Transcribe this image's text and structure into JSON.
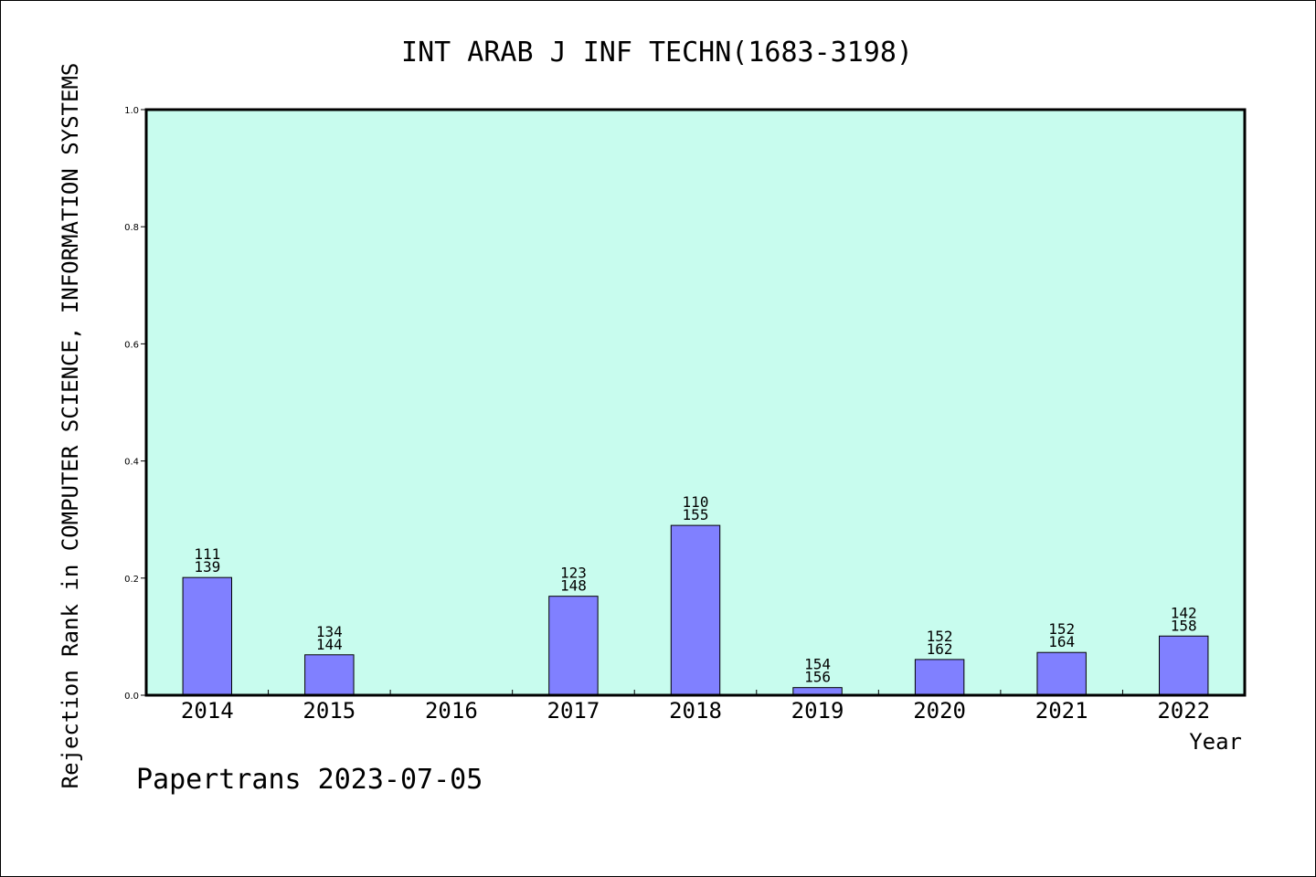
{
  "chart_data": {
    "type": "bar",
    "title": "INT ARAB J INF TECHN(1683-3198)",
    "ylabel": "Rejection Rank in COMPUTER SCIENCE, INFORMATION SYSTEMS",
    "xlabel": "Year",
    "categories": [
      "2014",
      "2015",
      "2016",
      "2017",
      "2018",
      "2019",
      "2020",
      "2021",
      "2022"
    ],
    "values": [
      0.201,
      0.069,
      null,
      0.169,
      0.29,
      0.013,
      0.061,
      0.073,
      0.101
    ],
    "labels": [
      [
        "111",
        "139"
      ],
      [
        "134",
        "144"
      ],
      null,
      [
        "123",
        "148"
      ],
      [
        "110",
        "155"
      ],
      [
        "154",
        "156"
      ],
      [
        "152",
        "162"
      ],
      [
        "152",
        "164"
      ],
      [
        "142",
        "158"
      ]
    ],
    "ylim": [
      0,
      1.0
    ],
    "yticks": [
      "0.0",
      "0.2",
      "0.4",
      "0.6",
      "0.8",
      "1.0"
    ],
    "grid": false,
    "colors": {
      "plot_background": "#c8fcee",
      "bar": "#8080ff"
    }
  },
  "footer": "Papertrans 2023-07-05"
}
